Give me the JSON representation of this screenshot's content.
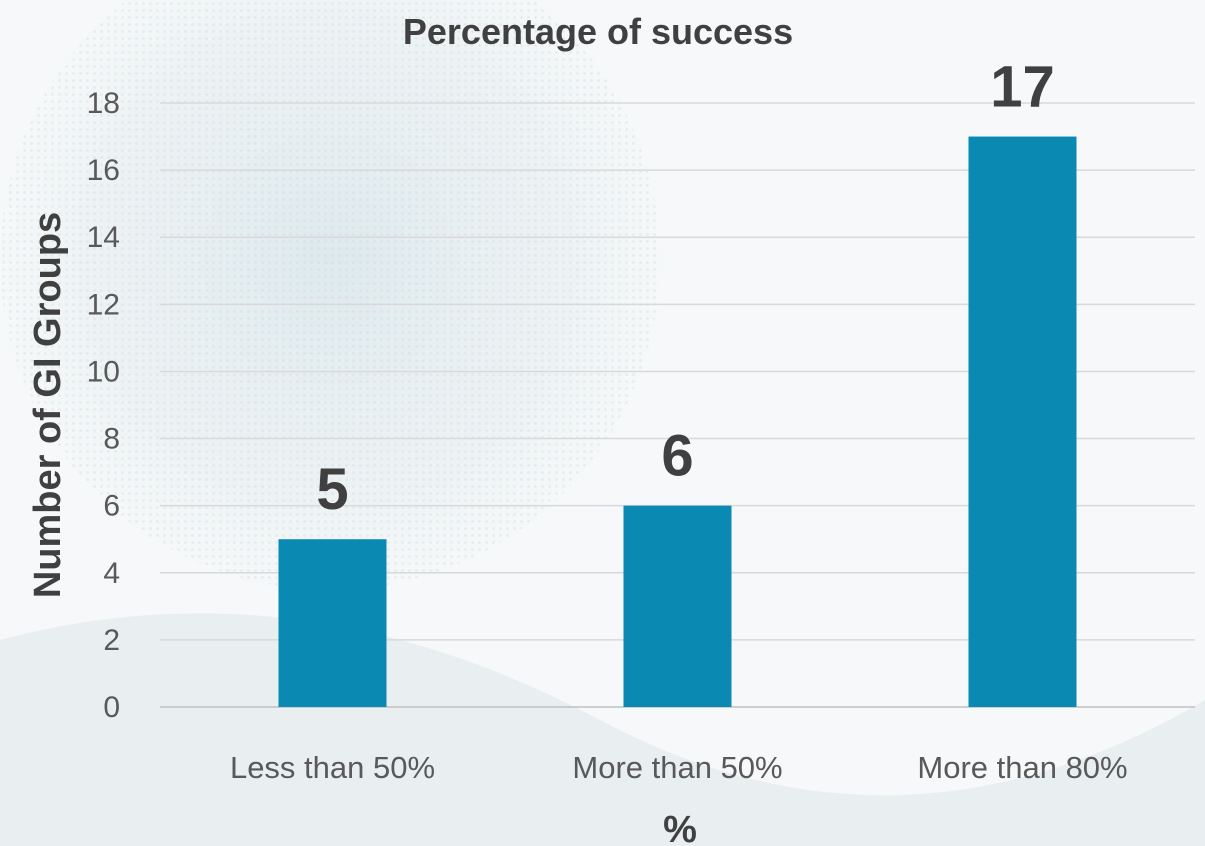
{
  "chart_data": {
    "type": "bar",
    "title": "Percentage of success",
    "xlabel": "%",
    "ylabel": "Number of GI Groups",
    "categories": [
      "Less than 50%",
      "More than 50%",
      "More than 80%"
    ],
    "values": [
      5,
      6,
      17
    ],
    "data_labels": [
      "5",
      "6",
      "17"
    ],
    "ylim": [
      0,
      18
    ],
    "yticks": [
      "0",
      "2",
      "4",
      "6",
      "8",
      "10",
      "12",
      "14",
      "16",
      "18"
    ],
    "grid": true,
    "legend": "none",
    "bar_color": "#0a89b3"
  }
}
